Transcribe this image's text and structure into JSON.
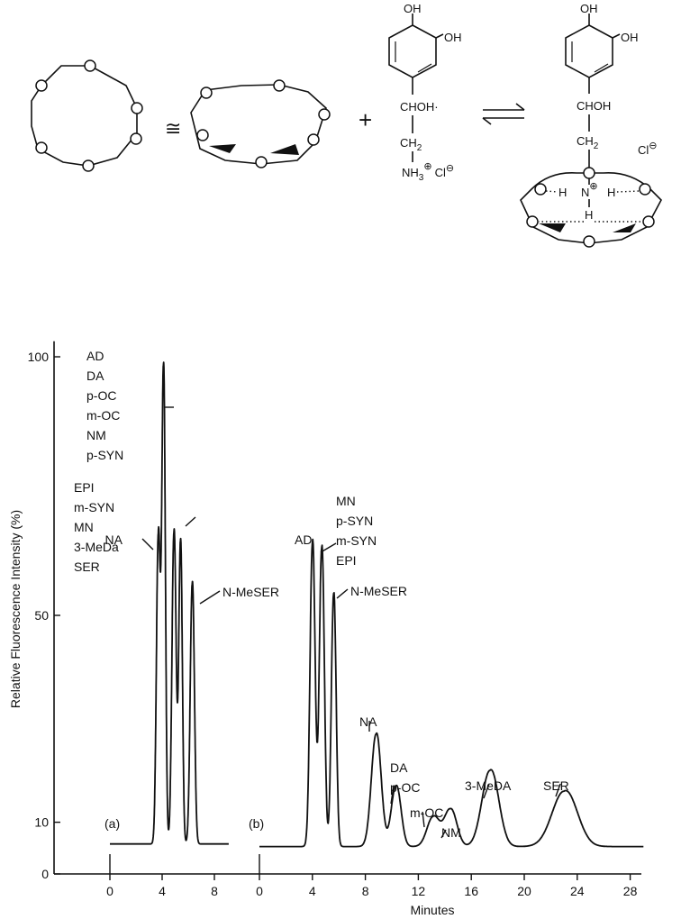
{
  "scheme": {
    "equiv_symbol": "≅",
    "plus_symbol": "+",
    "equilibrium_symbol": "⇌",
    "oh_top": "OH",
    "oh_side": "OH",
    "chohdot": "CHOH·",
    "choh": "CHOH",
    "ch2": "CH",
    "ch2_sub": "2",
    "nh3": "NH",
    "nh3_sub": "3",
    "plus_circle": "⊕",
    "cl_minus": "Cl",
    "minus_circle": "⊖",
    "h_left": "H",
    "n_center": "N",
    "h_right": "H",
    "h_bottom": "H",
    "cl_right": "Cl",
    "cl_right_sup": "⊖"
  },
  "chart_data": [
    {
      "type": "line",
      "panel_label": "(a)",
      "xlabel": "",
      "ylabel": "Relative Fluorescence Intensity (%)",
      "xlim": [
        -3,
        9
      ],
      "ylim": [
        0,
        103
      ],
      "xticks": [
        0,
        4,
        8
      ],
      "yticks": [
        0,
        10,
        50,
        100
      ],
      "baseline": 5.8,
      "series": [
        {
          "peaks": [
            {
              "x": 3.7,
              "height": 65,
              "width": 0.14
            },
            {
              "x": 4.1,
              "height": 97,
              "width": 0.13
            },
            {
              "x": 4.9,
              "height": 66,
              "width": 0.15
            },
            {
              "x": 5.4,
              "height": 64,
              "width": 0.13
            },
            {
              "x": 6.3,
              "height": 56,
              "width": 0.15
            }
          ]
        }
      ],
      "annotations": [
        {
          "lines": [
            "AD",
            "DA",
            "p-OC",
            "m-OC",
            "NM",
            "p-SYN"
          ],
          "x": 4.1
        },
        {
          "lines": [
            "EPI",
            "m-SYN",
            "MN",
            "3-MeDa",
            "SER"
          ],
          "x": 4.9
        },
        {
          "lines": [
            "NA"
          ],
          "x": 3.7
        },
        {
          "lines": [
            "N-MeSER"
          ],
          "x": 6.3
        }
      ]
    },
    {
      "type": "line",
      "panel_label": "(b)",
      "xlabel": "Minutes",
      "ylabel": "",
      "xlim": [
        0,
        29
      ],
      "ylim": [
        0,
        103
      ],
      "xticks": [
        0,
        4,
        8,
        12,
        16,
        20,
        24,
        28
      ],
      "baseline": 5.3,
      "series": [
        {
          "peaks": [
            {
              "x": 4.0,
              "height": 64,
              "width": 0.18
            },
            {
              "x": 4.7,
              "height": 63,
              "width": 0.18
            },
            {
              "x": 5.6,
              "height": 54,
              "width": 0.17
            },
            {
              "x": 8.8,
              "height": 27,
              "width": 0.35
            },
            {
              "x": 10.3,
              "height": 17,
              "width": 0.35
            },
            {
              "x": 13.1,
              "height": 11,
              "width": 0.45
            },
            {
              "x": 14.4,
              "height": 12.5,
              "width": 0.45
            },
            {
              "x": 17.4,
              "height": 20,
              "width": 0.6
            },
            {
              "x": 23.0,
              "height": 16,
              "width": 0.9
            }
          ]
        }
      ],
      "annotations": [
        {
          "lines": [
            "AD"
          ],
          "x": 4.0
        },
        {
          "lines": [
            "MN",
            "p-SYN",
            "m-SYN",
            "EPI"
          ],
          "x": 4.7
        },
        {
          "lines": [
            "N-MeSER"
          ],
          "x": 5.6
        },
        {
          "lines": [
            "NA"
          ],
          "x": 8.8
        },
        {
          "lines": [
            "DA",
            "p-OC"
          ],
          "x": 10.3
        },
        {
          "lines": [
            "m-OC"
          ],
          "x": 13.1
        },
        {
          "lines": [
            "NM"
          ],
          "x": 14.4
        },
        {
          "lines": [
            "3-MeDA"
          ],
          "x": 17.4
        },
        {
          "lines": [
            "SER"
          ],
          "x": 23.0
        }
      ]
    }
  ]
}
